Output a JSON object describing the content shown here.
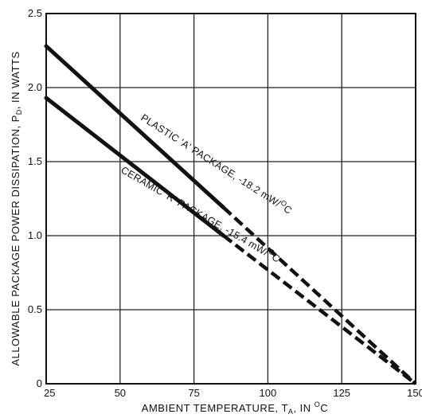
{
  "chart_data": {
    "type": "line",
    "xlabel": "AMBIENT TEMPERATURE, T",
    "xlabel_subscript": "A",
    "xlabel_tail": ",  IN ",
    "xlabel_superscript": "O",
    "xlabel_unit": "C",
    "ylabel": "ALLOWABLE PACKAGE POWER DISSIPATION, P",
    "ylabel_subscript": "D",
    "ylabel_tail": ",  IN WATTS",
    "xlim": [
      25,
      150
    ],
    "ylim": [
      0,
      2.5
    ],
    "x_ticks": [
      25,
      50,
      75,
      100,
      125,
      150
    ],
    "y_ticks": [
      0,
      0.5,
      1.0,
      1.5,
      2.0,
      2.5
    ],
    "x_tick_labels": [
      "25",
      "50",
      "75",
      "100",
      "125",
      "150"
    ],
    "y_tick_labels": [
      "0",
      "0.5",
      "1.0",
      "1.5",
      "2.0",
      "2.5"
    ],
    "grid": true,
    "series": [
      {
        "name": "PLASTIC 'A' PACKAGE",
        "slope_prefix": ", -18.2 mW/",
        "slope_sup": "O",
        "slope_unit": "C",
        "solid": {
          "x": [
            25,
            85
          ],
          "y": [
            2.28,
            1.19
          ]
        },
        "dashed": {
          "x": [
            85,
            150
          ],
          "y": [
            1.19,
            0.0
          ]
        }
      },
      {
        "name": "CERAMIC 'R' PACKAGE",
        "slope_prefix": ", -15.4 mW/",
        "slope_sup": "O",
        "slope_unit": "C",
        "solid": {
          "x": [
            25,
            85
          ],
          "y": [
            1.93,
            1.0
          ]
        },
        "dashed": {
          "x": [
            85,
            150
          ],
          "y": [
            1.0,
            0.0
          ]
        }
      }
    ]
  }
}
